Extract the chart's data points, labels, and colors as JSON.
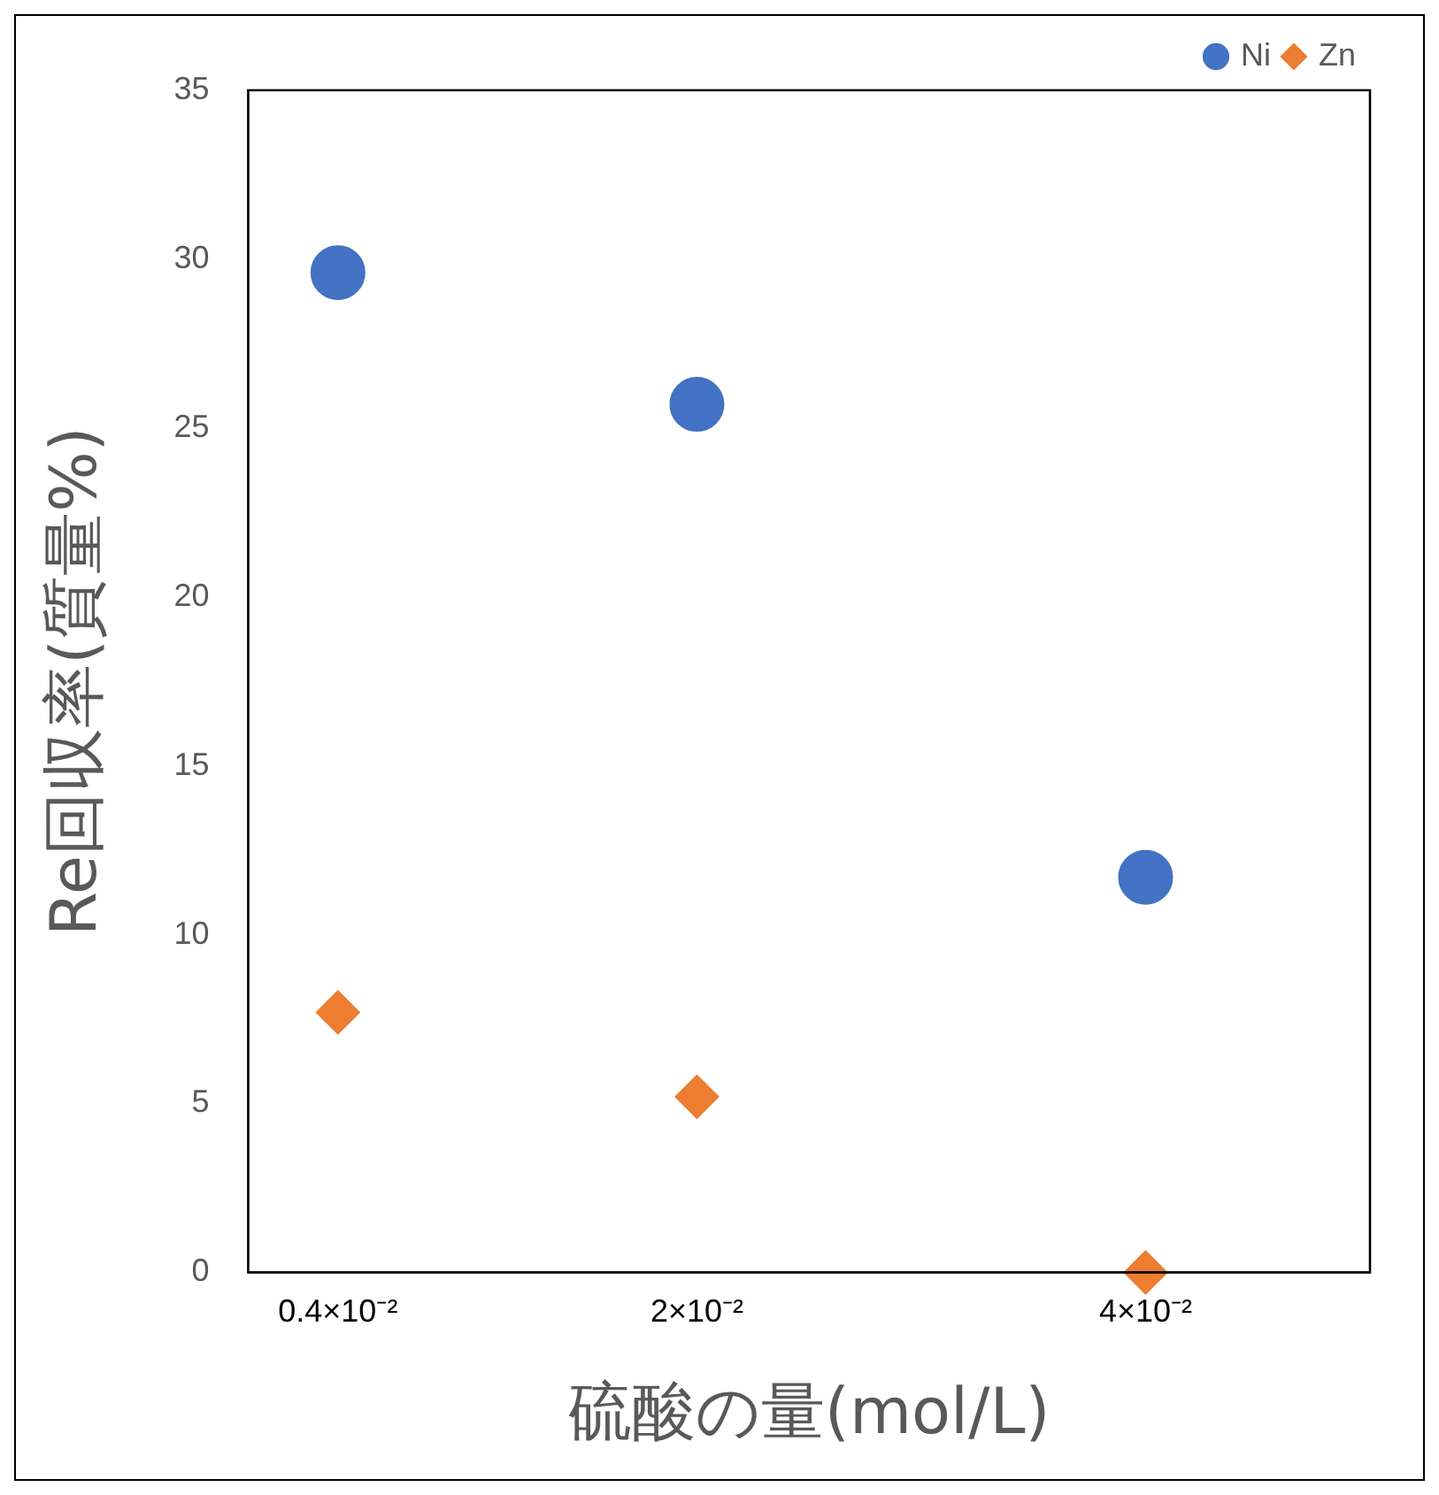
{
  "chart_data": {
    "type": "scatter",
    "xlabel": "硫酸の量(mol/L)",
    "ylabel": "Re回収率(質量%)",
    "xlim": [
      0,
      0.05
    ],
    "xticks": [
      {
        "value": 0.004,
        "label": "0.4×10⁻²"
      },
      {
        "value": 0.02,
        "label": "2×10⁻²"
      },
      {
        "value": 0.04,
        "label": "4×10⁻²"
      }
    ],
    "ylim": [
      0,
      35
    ],
    "yticks": [
      0,
      5,
      10,
      15,
      20,
      25,
      30,
      35
    ],
    "grid": false,
    "legend": "top right",
    "x": [
      0.004,
      0.02,
      0.04
    ],
    "series": [
      {
        "name": "Ni",
        "color": "#4472c4",
        "marker": "circle",
        "values": [
          29.6,
          25.7,
          11.7
        ]
      },
      {
        "name": "Zn",
        "color": "#ed7d31",
        "marker": "diamond",
        "values": [
          7.7,
          5.2,
          0
        ]
      }
    ]
  }
}
